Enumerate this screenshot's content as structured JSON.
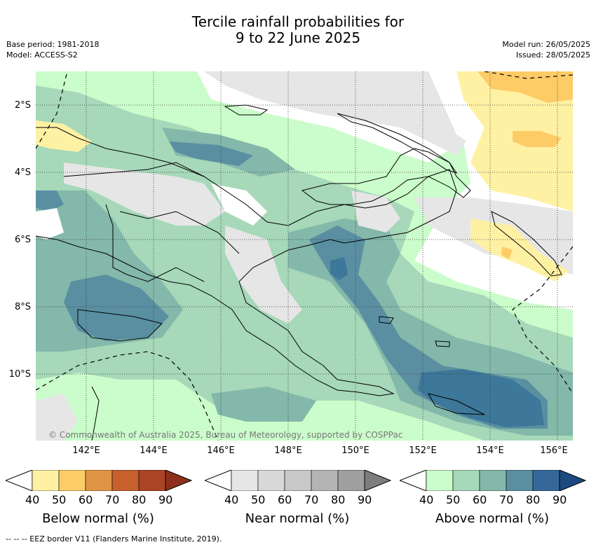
{
  "title_line1": "Tercile rainfall probabilities for",
  "title_line2": "9 to 22 June 2025",
  "base_period": "Base period: 1981-2018",
  "model": "Model: ACCESS-S2",
  "model_run": "Model run: 26/05/2025",
  "issued": "Issued: 28/05/2025",
  "lat_labels": [
    "2°S",
    "4°S",
    "6°S",
    "8°S",
    "10°S"
  ],
  "lon_labels": [
    "142°E",
    "144°E",
    "146°E",
    "148°E",
    "150°E",
    "152°E",
    "154°E",
    "156°E"
  ],
  "copyright": "© Commonwealth of Australia 2025, Bureau of Meteorology, supported by COSPPac",
  "colorbars": [
    {
      "title": "Below normal (%)",
      "ticks": [
        "40",
        "50",
        "60",
        "70",
        "80",
        "90"
      ],
      "colors": [
        "#fff1a3",
        "#fdcc66",
        "#e09446",
        "#c8602e",
        "#aa4425",
        "#8d2f1a"
      ]
    },
    {
      "title": "Near normal (%)",
      "ticks": [
        "40",
        "50",
        "60",
        "70",
        "80",
        "90"
      ],
      "colors": [
        "#e6e6e6",
        "#d8d8d8",
        "#c9c9c9",
        "#b4b4b4",
        "#9f9f9f",
        "#7d7d7d"
      ]
    },
    {
      "title": "Above normal (%)",
      "ticks": [
        "40",
        "50",
        "60",
        "70",
        "80",
        "90"
      ],
      "colors": [
        "#cbfccb",
        "#a6d8b9",
        "#83b8aa",
        "#5a8fa2",
        "#35679a",
        "#1c4a80"
      ]
    }
  ],
  "eez_note": "-- -- -- EEZ border V11 (Flanders Marine Institute, 2019).",
  "map_colors": {
    "white": "#ffffff",
    "near40": "#e6e6e6",
    "near50": "#d8d8d8",
    "below40": "#fff1a3",
    "below50": "#fdcc66",
    "above40": "#cbfccb",
    "above50": "#a6d8b9",
    "above60": "#83b8aa",
    "above70": "#5a8fa2",
    "above80": "#3d7799"
  }
}
